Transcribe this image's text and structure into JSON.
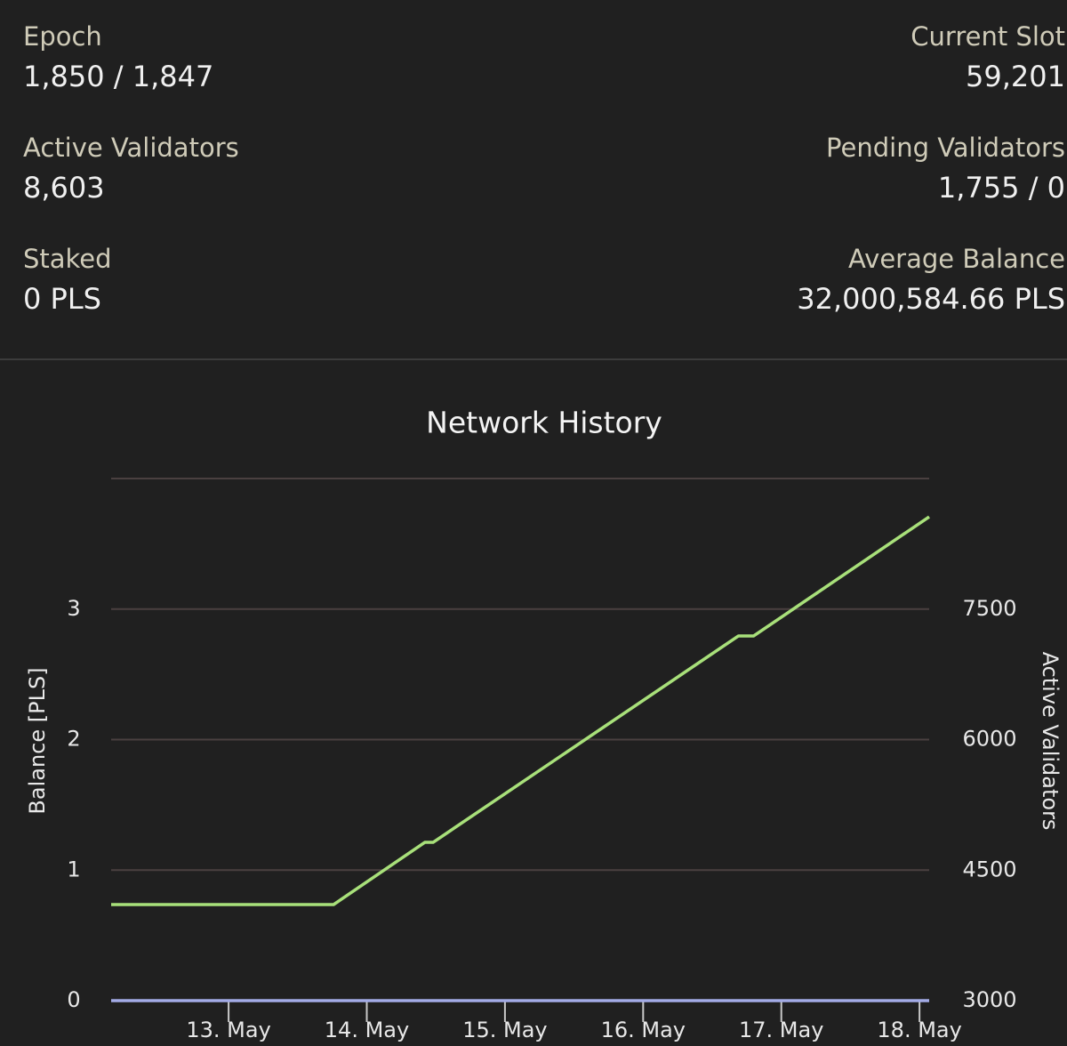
{
  "stats": [
    {
      "label": "Epoch",
      "value": "1,850 / 1,847"
    },
    {
      "label": "Current Slot",
      "value": "59,201"
    },
    {
      "label": "Active Validators",
      "value": "8,603"
    },
    {
      "label": "Pending Validators",
      "value": "1,755 / 0"
    },
    {
      "label": "Staked",
      "value": "0 PLS"
    },
    {
      "label": "Average Balance",
      "value": "32,000,584.66 PLS"
    }
  ],
  "chart_data": {
    "type": "line",
    "title": "Network History",
    "ylabel": "Balance [PLS]",
    "y2label": "Active Validators",
    "xlim": [
      12.15,
      18.07
    ],
    "xticks": [
      {
        "value": 13,
        "label": "13. May"
      },
      {
        "value": 14,
        "label": "14. May"
      },
      {
        "value": 15,
        "label": "15. May"
      },
      {
        "value": 16,
        "label": "16. May"
      },
      {
        "value": 17,
        "label": "17. May"
      },
      {
        "value": 18,
        "label": "18. May"
      }
    ],
    "ylim": [
      0,
      4
    ],
    "yticks": [
      0,
      1,
      2,
      3
    ],
    "y2lim": [
      3000,
      9000
    ],
    "y2ticks": [
      3000,
      4500,
      6000,
      7500
    ],
    "grid": true,
    "series": [
      {
        "color": "#a3abe6",
        "x": [
          12.15,
          18.07
        ],
        "values": [
          0,
          0
        ]
      },
      {
        "color": "#a8e07a",
        "axis": "y2",
        "x": [
          12.15,
          13.76,
          14.42,
          14.48,
          16.69,
          16.8,
          18.07
        ],
        "values": [
          4104,
          4104,
          4819,
          4819,
          7191,
          7191,
          8560
        ]
      }
    ]
  }
}
